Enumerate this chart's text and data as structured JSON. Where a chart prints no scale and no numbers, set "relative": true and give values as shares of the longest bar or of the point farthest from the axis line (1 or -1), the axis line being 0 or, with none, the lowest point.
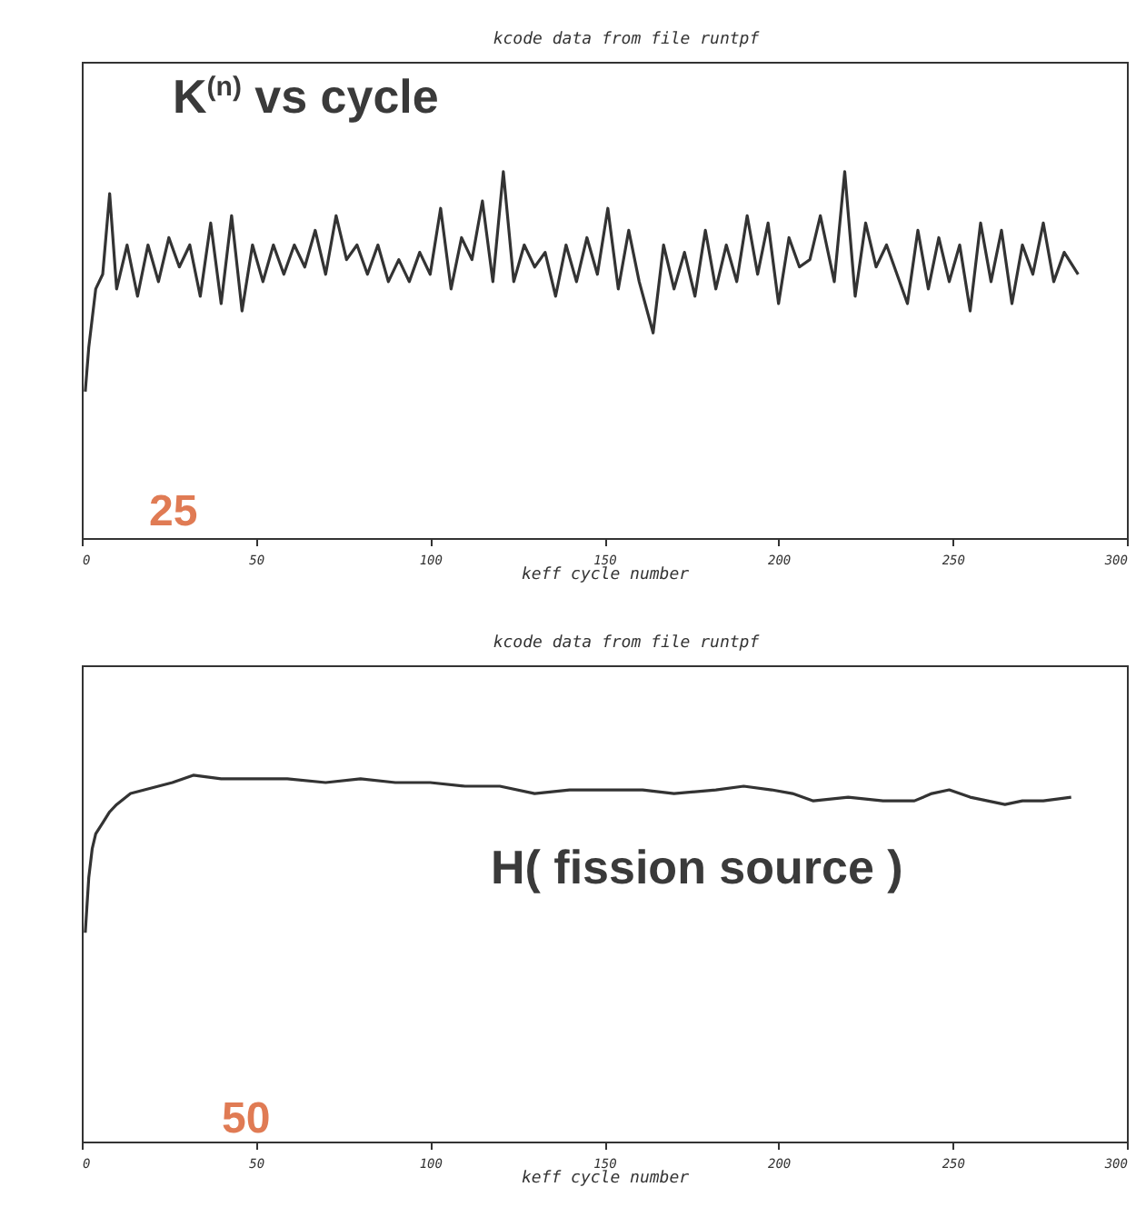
{
  "chart_data": [
    {
      "type": "line",
      "title": "kcode data from file runtpf",
      "xlabel": "keff cycle number",
      "relative": true,
      "xlim": [
        0,
        300
      ],
      "xticks": [
        0,
        50,
        100,
        150,
        200,
        250,
        300
      ],
      "color": "#333333",
      "annotations": [
        "K$^{(n)}$ vs cycle",
        "25"
      ],
      "x": [
        1,
        2,
        3,
        4,
        6,
        8,
        10,
        13,
        16,
        19,
        22,
        25,
        28,
        31,
        34,
        37,
        40,
        43,
        46,
        49,
        52,
        55,
        58,
        61,
        64,
        67,
        70,
        73,
        76,
        79,
        82,
        85,
        88,
        91,
        94,
        97,
        100,
        103,
        106,
        109,
        112,
        115,
        118,
        121,
        124,
        127,
        130,
        133,
        136,
        139,
        142,
        145,
        148,
        151,
        154,
        157,
        160,
        164,
        167,
        170,
        173,
        176,
        179,
        182,
        185,
        188,
        191,
        194,
        197,
        200,
        203,
        206,
        209,
        212,
        216,
        219,
        222,
        225,
        228,
        231,
        234,
        237,
        240,
        243,
        246,
        249,
        252,
        255,
        258,
        261,
        264,
        267,
        270,
        273,
        276,
        279,
        282,
        286
      ],
      "values": [
        0.4,
        0.52,
        0.6,
        0.68,
        0.72,
        0.94,
        0.68,
        0.8,
        0.66,
        0.8,
        0.7,
        0.82,
        0.74,
        0.8,
        0.66,
        0.86,
        0.64,
        0.88,
        0.62,
        0.8,
        0.7,
        0.8,
        0.72,
        0.8,
        0.74,
        0.84,
        0.72,
        0.88,
        0.76,
        0.8,
        0.72,
        0.8,
        0.7,
        0.76,
        0.7,
        0.78,
        0.72,
        0.9,
        0.68,
        0.82,
        0.76,
        0.92,
        0.7,
        1.0,
        0.7,
        0.8,
        0.74,
        0.78,
        0.66,
        0.8,
        0.7,
        0.82,
        0.72,
        0.9,
        0.68,
        0.84,
        0.7,
        0.56,
        0.8,
        0.68,
        0.78,
        0.66,
        0.84,
        0.68,
        0.8,
        0.7,
        0.88,
        0.72,
        0.86,
        0.64,
        0.82,
        0.74,
        0.76,
        0.88,
        0.7,
        1.0,
        0.66,
        0.86,
        0.74,
        0.8,
        0.72,
        0.64,
        0.84,
        0.68,
        0.82,
        0.7,
        0.8,
        0.62,
        0.86,
        0.7,
        0.84,
        0.64,
        0.8,
        0.72,
        0.86,
        0.7,
        0.78,
        0.72
      ]
    },
    {
      "type": "line",
      "title": "kcode data from file runtpf",
      "xlabel": "keff cycle number",
      "relative": true,
      "xlim": [
        0,
        300
      ],
      "xticks": [
        0,
        50,
        100,
        150,
        200,
        250,
        300
      ],
      "color": "#333333",
      "annotations": [
        "H( fission source )",
        "50"
      ],
      "x": [
        1,
        2,
        3,
        4,
        6,
        8,
        10,
        14,
        18,
        22,
        26,
        32,
        40,
        50,
        59,
        70,
        80,
        90,
        100,
        110,
        120,
        130,
        140,
        150,
        161,
        170,
        182,
        190,
        198,
        204,
        210,
        220,
        230,
        239,
        244,
        249,
        255,
        260,
        265,
        270,
        276,
        284
      ],
      "values": [
        0.57,
        0.72,
        0.8,
        0.84,
        0.87,
        0.9,
        0.92,
        0.95,
        0.96,
        0.97,
        0.98,
        1.0,
        0.99,
        0.99,
        0.99,
        0.98,
        0.99,
        0.98,
        0.98,
        0.97,
        0.97,
        0.95,
        0.96,
        0.96,
        0.96,
        0.95,
        0.96,
        0.97,
        0.96,
        0.95,
        0.93,
        0.94,
        0.93,
        0.93,
        0.95,
        0.96,
        0.94,
        0.93,
        0.92,
        0.93,
        0.93,
        0.94
      ]
    }
  ]
}
